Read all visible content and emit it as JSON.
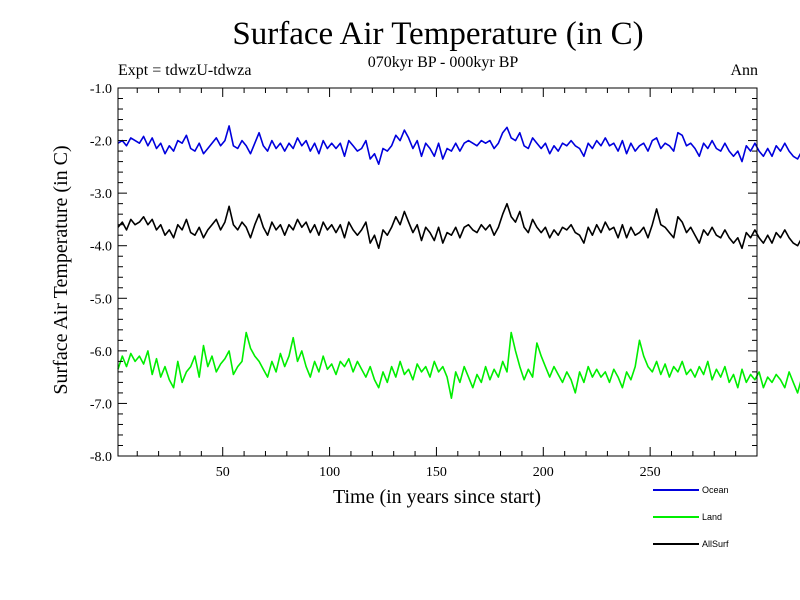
{
  "header": {
    "title": "Surface Air Temperature (in C)",
    "subtitle": "070kyr BP - 000kyr BP",
    "experiment": "Expt = tdwzU-tdwza",
    "season": "Ann"
  },
  "chart_data": {
    "type": "line",
    "title": "Surface Air Temperature (in C)",
    "xlabel": "Time (in years since start)",
    "ylabel": "Surface Air Temperature (in C)",
    "xlim": [
      1,
      300
    ],
    "ylim": [
      -8.0,
      -1.0
    ],
    "x_ticks": [
      50,
      100,
      150,
      200,
      250
    ],
    "y_ticks": [
      -1.0,
      -2.0,
      -3.0,
      -4.0,
      -5.0,
      -6.0,
      -7.0,
      -8.0
    ],
    "y_tick_labels": [
      "-1.0",
      "-2.0",
      "-3.0",
      "-4.0",
      "-5.0",
      "-6.0",
      "-7.0",
      "-8.0"
    ],
    "grid": false,
    "legend_position": "bottom-right",
    "x_step": 2,
    "series": [
      {
        "name": "Ocean",
        "color": "#0000dd",
        "values": [
          -2.05,
          -2.0,
          -2.1,
          -1.95,
          -2.0,
          -2.05,
          -1.92,
          -2.1,
          -1.95,
          -2.15,
          -2.05,
          -2.25,
          -2.1,
          -2.2,
          -2.0,
          -2.05,
          -1.9,
          -2.15,
          -2.2,
          -2.05,
          -2.25,
          -2.15,
          -2.05,
          -1.95,
          -2.1,
          -2.0,
          -1.72,
          -2.1,
          -2.15,
          -2.0,
          -2.1,
          -2.25,
          -2.05,
          -1.85,
          -2.1,
          -2.2,
          -2.0,
          -2.15,
          -2.05,
          -2.2,
          -2.05,
          -2.15,
          -1.95,
          -2.1,
          -2.0,
          -2.2,
          -2.05,
          -2.25,
          -2.0,
          -2.15,
          -2.05,
          -2.15,
          -2.05,
          -2.3,
          -2.0,
          -2.1,
          -2.2,
          -2.15,
          -2.0,
          -2.35,
          -2.25,
          -2.45,
          -2.15,
          -2.2,
          -2.1,
          -1.9,
          -2.0,
          -1.8,
          -1.95,
          -2.15,
          -2.0,
          -2.3,
          -2.05,
          -2.15,
          -2.3,
          -2.05,
          -2.35,
          -2.15,
          -2.2,
          -2.05,
          -2.2,
          -2.05,
          -2.0,
          -2.05,
          -2.1,
          -2.0,
          -2.05,
          -2.0,
          -2.15,
          -2.05,
          -1.85,
          -1.75,
          -1.95,
          -2.0,
          -1.85,
          -2.1,
          -2.15,
          -1.95,
          -2.05,
          -2.15,
          -2.05,
          -2.25,
          -2.1,
          -2.2,
          -2.05,
          -2.1,
          -2.0,
          -2.1,
          -2.15,
          -2.3,
          -2.05,
          -2.15,
          -2.0,
          -2.1,
          -1.95,
          -2.1,
          -2.05,
          -2.2,
          -2.0,
          -2.25,
          -2.05,
          -2.2,
          -2.1,
          -2.05,
          -2.2,
          -2.0,
          -1.95,
          -2.15,
          -2.05,
          -2.1,
          -2.2,
          -1.85,
          -1.9,
          -2.1,
          -2.05,
          -2.15,
          -2.3,
          -2.05,
          -2.15,
          -2.0,
          -2.15,
          -2.2,
          -2.05,
          -2.2,
          -2.3,
          -2.2,
          -2.4,
          -2.1,
          -2.2,
          -2.05,
          -2.2,
          -2.3,
          -2.15,
          -2.3,
          -2.1,
          -2.2,
          -2.05,
          -2.2,
          -2.3,
          -2.35,
          -2.2,
          -2.3,
          -2.15,
          -2.3,
          -2.2,
          -1.9,
          -2.1,
          -2.3,
          -2.05,
          -2.3,
          -2.25,
          -2.35,
          -2.25
        ]
      },
      {
        "name": "Land",
        "color": "#00ee00",
        "values": [
          -6.35,
          -6.1,
          -6.3,
          -6.05,
          -6.2,
          -6.1,
          -6.25,
          -6.0,
          -6.45,
          -6.15,
          -6.5,
          -6.3,
          -6.55,
          -6.7,
          -6.2,
          -6.6,
          -6.4,
          -6.3,
          -6.1,
          -6.5,
          -5.9,
          -6.3,
          -6.1,
          -6.4,
          -6.25,
          -6.15,
          -6.0,
          -6.45,
          -6.3,
          -6.2,
          -5.65,
          -5.95,
          -6.1,
          -6.2,
          -6.35,
          -6.5,
          -6.2,
          -6.4,
          -6.05,
          -6.3,
          -6.1,
          -5.75,
          -6.2,
          -6.0,
          -6.3,
          -6.5,
          -6.2,
          -6.4,
          -6.1,
          -6.35,
          -6.25,
          -6.45,
          -6.2,
          -6.3,
          -6.15,
          -6.4,
          -6.2,
          -6.35,
          -6.5,
          -6.3,
          -6.55,
          -6.7,
          -6.4,
          -6.6,
          -6.3,
          -6.5,
          -6.2,
          -6.45,
          -6.35,
          -6.55,
          -6.25,
          -6.4,
          -6.3,
          -6.5,
          -6.2,
          -6.4,
          -6.3,
          -6.5,
          -6.9,
          -6.4,
          -6.6,
          -6.3,
          -6.5,
          -6.7,
          -6.45,
          -6.6,
          -6.3,
          -6.55,
          -6.35,
          -6.5,
          -6.2,
          -6.4,
          -5.65,
          -6.0,
          -6.3,
          -6.55,
          -6.35,
          -6.5,
          -5.85,
          -6.1,
          -6.3,
          -6.5,
          -6.3,
          -6.45,
          -6.6,
          -6.4,
          -6.55,
          -6.8,
          -6.4,
          -6.6,
          -6.3,
          -6.5,
          -6.35,
          -6.5,
          -6.4,
          -6.6,
          -6.35,
          -6.5,
          -6.7,
          -6.4,
          -6.55,
          -6.3,
          -5.8,
          -6.1,
          -6.3,
          -6.4,
          -6.2,
          -6.45,
          -6.25,
          -6.5,
          -6.3,
          -6.4,
          -6.2,
          -6.45,
          -6.35,
          -6.5,
          -6.3,
          -6.45,
          -6.2,
          -6.55,
          -6.35,
          -6.5,
          -6.3,
          -6.6,
          -6.45,
          -6.7,
          -6.35,
          -6.6,
          -6.45,
          -6.55,
          -6.4,
          -6.7,
          -6.5,
          -6.6,
          -6.45,
          -6.55,
          -6.7,
          -6.4,
          -6.6,
          -6.8,
          -6.5,
          -6.95,
          -6.7,
          -6.4,
          -6.6,
          -6.5,
          -6.1,
          -6.2,
          -6.6,
          -6.75,
          -6.7,
          -6.65,
          -6.6
        ]
      },
      {
        "name": "AllSurf",
        "color": "#000000",
        "values": [
          -3.65,
          -3.55,
          -3.7,
          -3.5,
          -3.6,
          -3.55,
          -3.45,
          -3.6,
          -3.5,
          -3.7,
          -3.6,
          -3.8,
          -3.7,
          -3.85,
          -3.6,
          -3.7,
          -3.5,
          -3.75,
          -3.8,
          -3.65,
          -3.85,
          -3.7,
          -3.6,
          -3.5,
          -3.7,
          -3.55,
          -3.25,
          -3.6,
          -3.7,
          -3.55,
          -3.65,
          -3.85,
          -3.6,
          -3.4,
          -3.65,
          -3.8,
          -3.55,
          -3.7,
          -3.6,
          -3.8,
          -3.6,
          -3.7,
          -3.5,
          -3.65,
          -3.55,
          -3.75,
          -3.6,
          -3.8,
          -3.55,
          -3.7,
          -3.6,
          -3.75,
          -3.6,
          -3.85,
          -3.55,
          -3.7,
          -3.8,
          -3.7,
          -3.55,
          -3.95,
          -3.8,
          -4.05,
          -3.7,
          -3.8,
          -3.65,
          -3.45,
          -3.6,
          -3.35,
          -3.55,
          -3.75,
          -3.6,
          -3.9,
          -3.65,
          -3.75,
          -3.9,
          -3.65,
          -3.95,
          -3.75,
          -3.8,
          -3.65,
          -3.85,
          -3.65,
          -3.6,
          -3.7,
          -3.75,
          -3.6,
          -3.7,
          -3.6,
          -3.8,
          -3.65,
          -3.4,
          -3.2,
          -3.45,
          -3.55,
          -3.35,
          -3.65,
          -3.75,
          -3.5,
          -3.65,
          -3.75,
          -3.65,
          -3.85,
          -3.7,
          -3.8,
          -3.65,
          -3.7,
          -3.6,
          -3.75,
          -3.8,
          -3.95,
          -3.65,
          -3.8,
          -3.6,
          -3.75,
          -3.55,
          -3.7,
          -3.65,
          -3.85,
          -3.6,
          -3.85,
          -3.65,
          -3.8,
          -3.75,
          -3.65,
          -3.85,
          -3.6,
          -3.3,
          -3.6,
          -3.65,
          -3.75,
          -3.85,
          -3.45,
          -3.55,
          -3.75,
          -3.65,
          -3.8,
          -3.95,
          -3.7,
          -3.8,
          -3.65,
          -3.8,
          -3.85,
          -3.7,
          -3.85,
          -3.95,
          -3.85,
          -4.05,
          -3.75,
          -3.85,
          -3.7,
          -3.85,
          -3.95,
          -3.8,
          -3.95,
          -3.75,
          -3.85,
          -3.7,
          -3.85,
          -3.95,
          -4.0,
          -3.85,
          -3.95,
          -3.8,
          -3.95,
          -3.85,
          -3.5,
          -3.75,
          -3.95,
          -3.7,
          -3.95,
          -3.9,
          -4.0,
          -3.9
        ]
      }
    ]
  }
}
